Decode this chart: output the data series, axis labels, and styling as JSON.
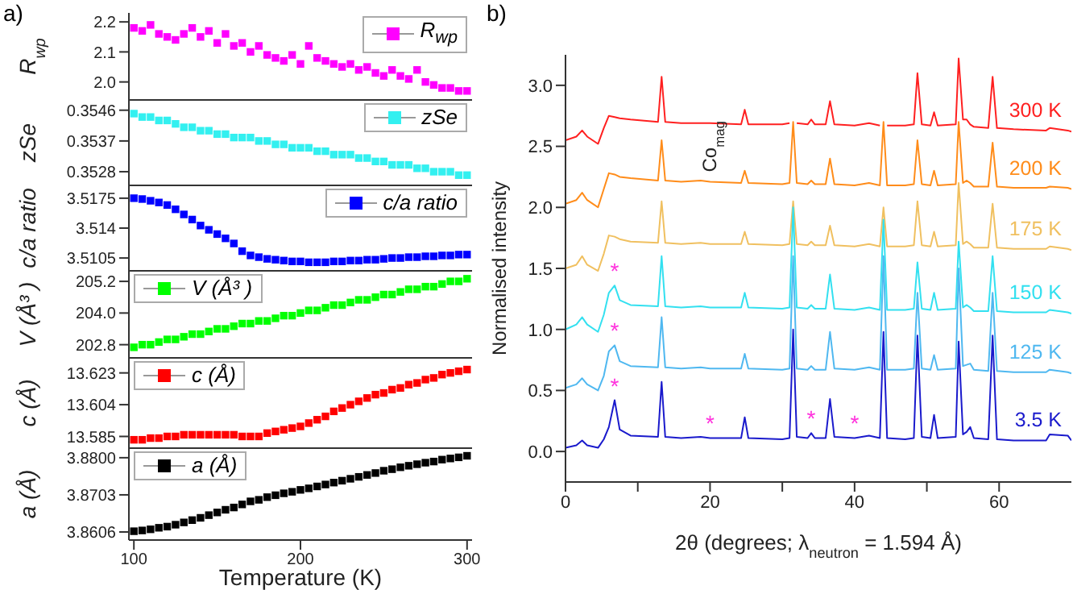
{
  "chart_data": [
    {
      "type": "scatter",
      "annotations": [
        "a)"
      ],
      "ylabel": "R$_{wp}$",
      "legend": "top right",
      "marker": "square",
      "tick_labels": "y",
      "xlim": [
        97,
        303
      ],
      "xticks": [
        100,
        200,
        300
      ],
      "ylim": [
        1.94,
        2.23
      ],
      "yticks": [
        {
          "value": 2.0,
          "label": "2.0"
        },
        2.1,
        2.2
      ],
      "x": [
        100,
        105,
        110,
        115,
        120,
        125,
        130,
        135,
        140,
        145,
        150,
        155,
        160,
        165,
        170,
        175,
        180,
        185,
        190,
        195,
        200,
        205,
        210,
        215,
        220,
        225,
        230,
        235,
        240,
        245,
        250,
        255,
        260,
        265,
        270,
        275,
        280,
        285,
        290,
        295,
        300
      ],
      "series": [
        {
          "name": "R$_{wp}$",
          "color": "#ff00ff",
          "values": [
            2.18,
            2.17,
            2.19,
            2.16,
            2.15,
            2.14,
            2.16,
            2.18,
            2.15,
            2.17,
            2.13,
            2.16,
            2.12,
            2.13,
            2.1,
            2.12,
            2.09,
            2.08,
            2.07,
            2.09,
            2.06,
            2.12,
            2.08,
            2.07,
            2.06,
            2.05,
            2.06,
            2.04,
            2.05,
            2.03,
            2.02,
            2.04,
            2.02,
            2.01,
            2.04,
            2.0,
            1.99,
            1.98,
            1.98,
            1.97,
            1.97
          ]
        }
      ]
    },
    {
      "type": "scatter",
      "ylabel": "zSe",
      "legend": "top right",
      "marker": "square",
      "tick_labels": "y",
      "xlim": [
        97,
        303
      ],
      "xticks": [
        100,
        200,
        300
      ],
      "ylim": [
        0.3524,
        0.3549
      ],
      "yticks": [
        0.3528,
        0.3537,
        0.3546
      ],
      "x": [
        100,
        105,
        110,
        115,
        120,
        125,
        130,
        135,
        140,
        145,
        150,
        155,
        160,
        165,
        170,
        175,
        180,
        185,
        190,
        195,
        200,
        205,
        210,
        215,
        220,
        225,
        230,
        235,
        240,
        245,
        250,
        255,
        260,
        265,
        270,
        275,
        280,
        285,
        290,
        295,
        300
      ],
      "series": [
        {
          "name": "zSe",
          "color": "#33f0f0",
          "values": [
            0.3545,
            0.3544,
            0.3544,
            0.3543,
            0.3543,
            0.3542,
            0.3541,
            0.3541,
            0.354,
            0.354,
            0.3539,
            0.3539,
            0.3538,
            0.3538,
            0.3538,
            0.3537,
            0.3537,
            0.3536,
            0.3536,
            0.3535,
            0.3535,
            0.3535,
            0.3534,
            0.3534,
            0.3533,
            0.3533,
            0.3533,
            0.3532,
            0.3532,
            0.3531,
            0.3531,
            0.353,
            0.353,
            0.353,
            0.3529,
            0.3529,
            0.3528,
            0.3528,
            0.3528,
            0.3527,
            0.3527
          ]
        }
      ]
    },
    {
      "type": "scatter",
      "ylabel": "c/a ratio",
      "legend": "top right",
      "marker": "square",
      "tick_labels": "y",
      "xlim": [
        97,
        303
      ],
      "xticks": [
        100,
        200,
        300
      ],
      "ylim": [
        3.509,
        3.519
      ],
      "yticks": [
        3.5105,
        3.514,
        3.5175
      ],
      "x": [
        100,
        105,
        110,
        115,
        120,
        125,
        130,
        135,
        140,
        145,
        150,
        155,
        160,
        165,
        170,
        175,
        180,
        185,
        190,
        195,
        200,
        205,
        210,
        215,
        220,
        225,
        230,
        235,
        240,
        245,
        250,
        255,
        260,
        265,
        270,
        275,
        280,
        285,
        290,
        295,
        300
      ],
      "series": [
        {
          "name": "c/a ratio",
          "color": "#0000ff",
          "values": [
            3.5175,
            3.5174,
            3.5172,
            3.517,
            3.5167,
            3.5162,
            3.5156,
            3.515,
            3.5143,
            3.5138,
            3.5133,
            3.5128,
            3.5122,
            3.5113,
            3.5108,
            3.5106,
            3.5104,
            3.5103,
            3.5102,
            3.5101,
            3.5101,
            3.51,
            3.51,
            3.51,
            3.5101,
            3.5101,
            3.5102,
            3.5102,
            3.5103,
            3.5103,
            3.5104,
            3.5105,
            3.5105,
            3.5106,
            3.5106,
            3.5107,
            3.5107,
            3.5108,
            3.5108,
            3.5109,
            3.5109
          ]
        }
      ]
    },
    {
      "type": "scatter",
      "ylabel": "V (Å³ )",
      "legend": "top left",
      "marker": "square",
      "tick_labels": "y",
      "xlim": [
        97,
        303
      ],
      "xticks": [
        100,
        200,
        300
      ],
      "ylim": [
        202.3,
        205.6
      ],
      "yticks": [
        202.8,
        {
          "value": 204,
          "label": "204.0"
        },
        205.2
      ],
      "x": [
        100,
        105,
        110,
        115,
        120,
        125,
        130,
        135,
        140,
        145,
        150,
        155,
        160,
        165,
        170,
        175,
        180,
        185,
        190,
        195,
        200,
        205,
        210,
        215,
        220,
        225,
        230,
        235,
        240,
        245,
        250,
        255,
        260,
        265,
        270,
        275,
        280,
        285,
        290,
        295,
        300
      ],
      "series": [
        {
          "name": "V (Å³ )",
          "color": "#00ff00",
          "values": [
            202.7,
            202.8,
            202.8,
            202.9,
            203.0,
            203.0,
            203.1,
            203.2,
            203.2,
            203.3,
            203.4,
            203.4,
            203.5,
            203.6,
            203.6,
            203.7,
            203.7,
            203.8,
            203.9,
            203.9,
            204.0,
            204.1,
            204.1,
            204.2,
            204.3,
            204.3,
            204.4,
            204.5,
            204.5,
            204.6,
            204.7,
            204.7,
            204.8,
            204.9,
            204.9,
            205.0,
            205.0,
            205.1,
            205.2,
            205.2,
            205.3
          ]
        }
      ]
    },
    {
      "type": "scatter",
      "ylabel": "c (Å)",
      "legend": "top left",
      "marker": "square",
      "tick_labels": "y",
      "xlim": [
        97,
        303
      ],
      "xticks": [
        100,
        200,
        300
      ],
      "ylim": [
        13.578,
        13.632
      ],
      "yticks": [
        13.585,
        13.604,
        13.623
      ],
      "x": [
        100,
        105,
        110,
        115,
        120,
        125,
        130,
        135,
        140,
        145,
        150,
        155,
        160,
        165,
        170,
        175,
        180,
        185,
        190,
        195,
        200,
        205,
        210,
        215,
        220,
        225,
        230,
        235,
        240,
        245,
        250,
        255,
        260,
        265,
        270,
        275,
        280,
        285,
        290,
        295,
        300
      ],
      "series": [
        {
          "name": "c (Å)",
          "color": "#ff0000",
          "values": [
            13.583,
            13.583,
            13.584,
            13.584,
            13.585,
            13.585,
            13.586,
            13.586,
            13.586,
            13.586,
            13.586,
            13.586,
            13.586,
            13.585,
            13.585,
            13.585,
            13.587,
            13.588,
            13.589,
            13.59,
            13.591,
            13.593,
            13.595,
            13.597,
            13.6,
            13.602,
            13.604,
            13.606,
            13.608,
            13.61,
            13.611,
            13.613,
            13.614,
            13.616,
            13.617,
            13.619,
            13.62,
            13.622,
            13.623,
            13.624,
            13.625
          ]
        }
      ]
    },
    {
      "type": "scatter",
      "ylabel": "a (Å)",
      "xlabel": "Temperature (K)",
      "legend": "top left",
      "marker": "square",
      "xlim": [
        97,
        303
      ],
      "xticks": [
        100,
        200,
        300
      ],
      "ylim": [
        3.8585,
        3.8825
      ],
      "yticks": [
        3.8606,
        3.8703,
        {
          "value": 3.88,
          "label": "3.8800"
        }
      ],
      "x": [
        100,
        105,
        110,
        115,
        120,
        125,
        130,
        135,
        140,
        145,
        150,
        155,
        160,
        165,
        170,
        175,
        180,
        185,
        190,
        195,
        200,
        205,
        210,
        215,
        220,
        225,
        230,
        235,
        240,
        245,
        250,
        255,
        260,
        265,
        270,
        275,
        280,
        285,
        290,
        295,
        300
      ],
      "series": [
        {
          "name": "a (Å)",
          "color": "#000000",
          "values": [
            3.8608,
            3.861,
            3.8613,
            3.8617,
            3.862,
            3.8625,
            3.8631,
            3.8637,
            3.8643,
            3.865,
            3.8657,
            3.8664,
            3.867,
            3.8678,
            3.8686,
            3.869,
            3.8697,
            3.8702,
            3.8707,
            3.8711,
            3.8716,
            3.872,
            3.8725,
            3.873,
            3.8735,
            3.874,
            3.8745,
            3.875,
            3.8755,
            3.876,
            3.8766,
            3.877,
            3.8775,
            3.8779,
            3.8783,
            3.8787,
            3.879,
            3.8795,
            3.8798,
            3.8801,
            3.8805
          ]
        }
      ]
    },
    {
      "type": "line",
      "xlabel": "2θ (degrees; λ$_{neutron}$ = 1.594 Å)",
      "ylabel": "Normalised intensity",
      "marker": "none",
      "line_style": "solid",
      "annotations": [
        "b)",
        {
          "text": "Co$_{mag}$",
          "x": 20,
          "y": 2.21
        },
        {
          "text": "*",
          "x": 6.8,
          "y": 1.36
        },
        {
          "text": "*",
          "x": 6.8,
          "y": 0.87
        },
        {
          "text": "*",
          "x": 6.8,
          "y": 0.42
        },
        {
          "text": "*",
          "x": 20,
          "y": 0.11
        },
        {
          "text": "*",
          "x": 34,
          "y": 0.15
        },
        {
          "text": "*",
          "x": 40,
          "y": 0.11
        }
      ],
      "xlim": [
        0,
        70
      ],
      "xticks": [
        0,
        {
          "value": 10,
          "label": null
        },
        20,
        {
          "value": 30,
          "label": null
        },
        40,
        {
          "value": 50,
          "label": null
        },
        60
      ],
      "ylim": [
        -0.25,
        3.25
      ],
      "yticks": [
        {
          "value": 0,
          "label": "0.0"
        },
        0.5,
        {
          "value": 1,
          "label": "1.0"
        },
        1.5,
        {
          "value": 2,
          "label": "2.0"
        },
        2.5,
        {
          "value": 3,
          "label": "3.0"
        }
      ],
      "x": [
        0,
        1.5,
        2.3,
        3,
        4.5,
        5.3,
        6,
        6.8,
        7.5,
        9,
        12.8,
        13.3,
        13.8,
        16,
        18.7,
        20,
        24.3,
        24.8,
        25.3,
        30,
        31,
        31.5,
        32,
        33.5,
        34,
        34.5,
        36,
        36.6,
        37.2,
        40,
        42,
        43.5,
        44,
        44.5,
        47,
        48.2,
        48.7,
        49.3,
        50.5,
        51,
        51.5,
        54,
        54.4,
        55,
        55.5,
        56,
        56.5,
        58.5,
        59.1,
        59.7,
        62,
        66.5,
        67,
        69.5,
        70
      ],
      "series": [
        {
          "name": "300 K",
          "color": "#ff2020",
          "values": [
            2.55,
            2.58,
            2.63,
            2.58,
            2.52,
            2.65,
            2.75,
            2.74,
            2.73,
            2.72,
            2.7,
            3.07,
            2.7,
            2.69,
            2.69,
            2.69,
            2.68,
            2.8,
            2.68,
            2.68,
            2.69,
            null,
            2.69,
            2.68,
            2.72,
            2.68,
            2.68,
            2.87,
            2.68,
            2.67,
            2.69,
            2.67,
            null,
            2.67,
            2.67,
            2.68,
            3.1,
            2.68,
            2.67,
            2.78,
            2.67,
            2.68,
            3.22,
            2.72,
            2.72,
            2.68,
            2.66,
            2.65,
            3.07,
            2.65,
            2.64,
            2.63,
            2.65,
            2.63,
            2.62
          ]
        },
        {
          "name": "200 K",
          "color": "#ff8c1a",
          "values": [
            2.03,
            2.06,
            2.12,
            2.06,
            2.0,
            2.15,
            2.28,
            2.27,
            2.25,
            2.24,
            2.22,
            2.55,
            2.22,
            2.21,
            2.22,
            2.21,
            2.2,
            2.3,
            2.2,
            2.19,
            2.2,
            2.7,
            2.2,
            2.19,
            2.22,
            2.19,
            2.19,
            2.4,
            2.19,
            2.18,
            2.2,
            2.18,
            2.7,
            2.18,
            2.18,
            2.19,
            2.55,
            2.19,
            2.18,
            2.3,
            2.18,
            2.19,
            2.7,
            2.2,
            2.22,
            2.2,
            2.17,
            2.17,
            2.53,
            2.17,
            2.16,
            2.16,
            2.17,
            2.16,
            2.15
          ]
        },
        {
          "name": "175 K",
          "color": "#f0c060",
          "values": [
            1.5,
            1.53,
            1.6,
            1.53,
            1.48,
            1.62,
            1.77,
            1.76,
            1.74,
            1.72,
            1.71,
            2.05,
            1.71,
            1.7,
            1.71,
            1.7,
            1.7,
            1.8,
            1.7,
            1.69,
            1.7,
            2.05,
            1.7,
            1.69,
            1.72,
            1.69,
            1.69,
            1.85,
            1.69,
            1.68,
            1.7,
            1.68,
            2.0,
            1.68,
            1.68,
            1.69,
            2.05,
            1.69,
            1.68,
            1.8,
            1.68,
            1.69,
            2.2,
            1.7,
            1.72,
            1.7,
            1.67,
            1.67,
            2.03,
            1.67,
            1.66,
            1.66,
            1.68,
            1.66,
            1.65
          ]
        },
        {
          "name": "150 K",
          "color": "#33e0f0",
          "values": [
            1.0,
            1.04,
            1.1,
            1.04,
            0.98,
            1.12,
            1.3,
            1.36,
            1.24,
            1.2,
            1.19,
            1.6,
            1.19,
            1.18,
            1.19,
            1.18,
            1.18,
            1.3,
            1.18,
            1.17,
            1.18,
            2.0,
            1.18,
            1.17,
            1.2,
            1.17,
            1.17,
            1.45,
            1.17,
            1.16,
            1.18,
            1.16,
            1.9,
            1.16,
            1.16,
            1.17,
            1.55,
            1.17,
            1.16,
            1.3,
            1.16,
            1.17,
            1.72,
            1.18,
            1.2,
            1.18,
            1.15,
            1.15,
            1.6,
            1.15,
            1.14,
            1.14,
            1.16,
            1.14,
            1.13
          ]
        },
        {
          "name": "125 K",
          "color": "#4fb8f0",
          "values": [
            0.52,
            0.55,
            0.6,
            0.55,
            0.5,
            0.62,
            0.82,
            0.87,
            0.74,
            0.7,
            0.69,
            1.1,
            0.69,
            0.68,
            0.69,
            0.68,
            0.68,
            0.8,
            0.68,
            0.67,
            0.68,
            1.6,
            0.68,
            0.67,
            0.7,
            0.67,
            0.67,
            0.98,
            0.68,
            0.67,
            0.69,
            0.67,
            1.6,
            0.67,
            0.67,
            0.68,
            1.3,
            0.68,
            0.67,
            0.79,
            0.67,
            0.68,
            1.5,
            0.7,
            0.71,
            0.72,
            0.67,
            0.66,
            1.3,
            0.66,
            0.65,
            0.65,
            0.67,
            0.65,
            0.64
          ]
        },
        {
          "name": "3.5 K",
          "color": "#1a1acc",
          "values": [
            0.03,
            0.05,
            0.09,
            0.05,
            0.03,
            0.1,
            0.2,
            0.42,
            0.18,
            0.13,
            0.12,
            0.57,
            0.12,
            0.11,
            0.12,
            0.11,
            0.11,
            0.28,
            0.11,
            0.1,
            0.11,
            1.0,
            0.12,
            0.11,
            0.15,
            0.11,
            0.11,
            0.43,
            0.12,
            0.11,
            0.13,
            0.11,
            0.98,
            0.11,
            0.1,
            0.11,
            0.95,
            0.12,
            0.11,
            0.3,
            0.11,
            0.12,
            0.9,
            0.14,
            0.16,
            0.2,
            0.11,
            0.1,
            0.95,
            0.1,
            0.09,
            0.09,
            0.14,
            0.13,
            0.09
          ]
        }
      ]
    }
  ]
}
